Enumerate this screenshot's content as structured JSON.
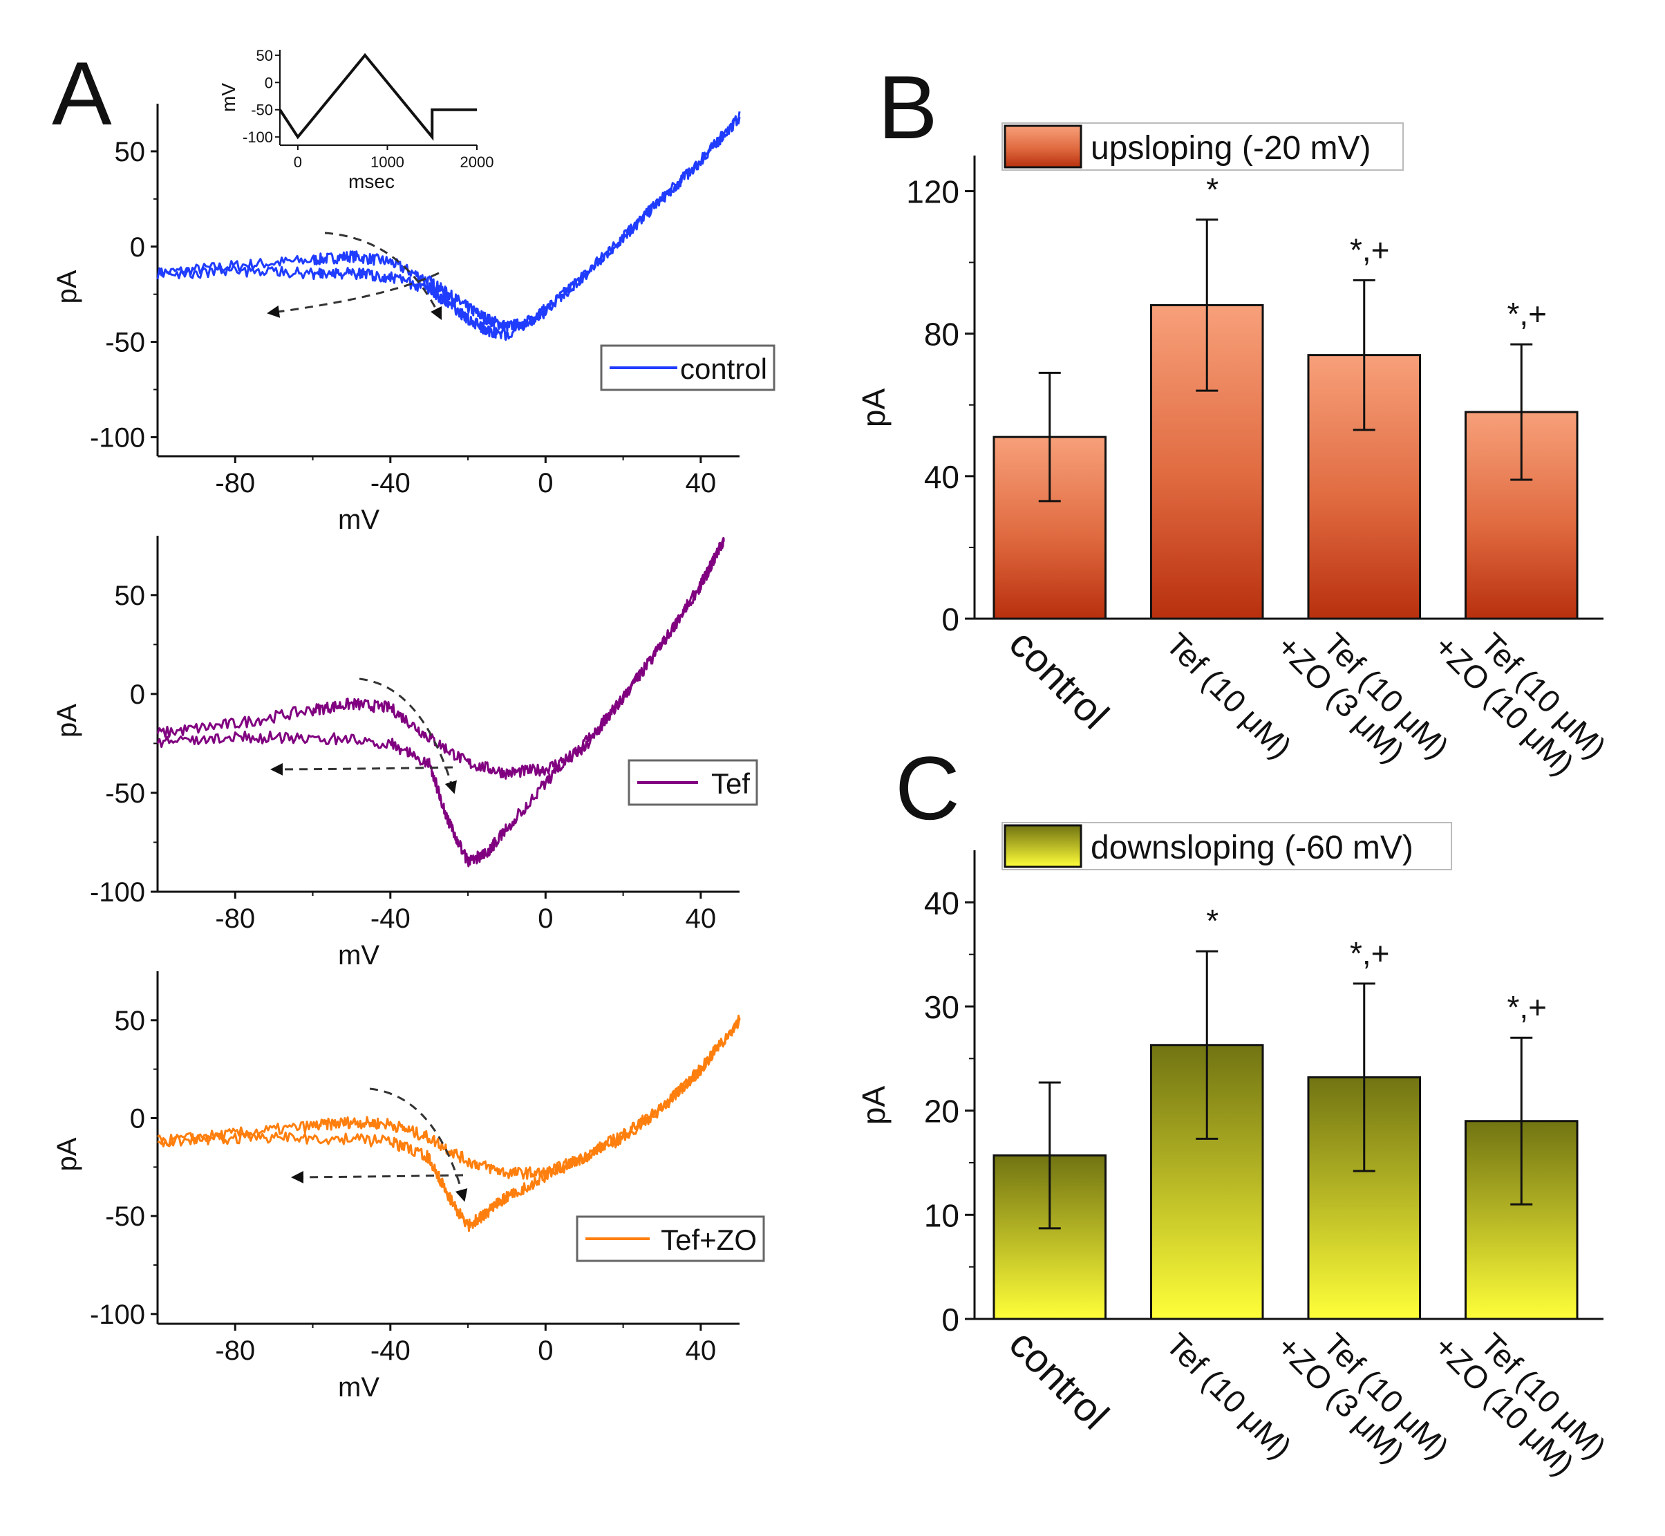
{
  "panel_labels": {
    "A": "A",
    "B": "B",
    "C": "C"
  },
  "inset": {
    "xlabel": "msec",
    "ylabel": "mV",
    "xticks": [
      "0",
      "1000",
      "2000"
    ],
    "yticks": [
      "50",
      "0",
      "-50",
      "-100"
    ],
    "xlim": [
      -200,
      2000
    ],
    "ylim": [
      -115,
      60
    ],
    "protocol": {
      "x": [
        -200,
        0,
        750,
        1500,
        1500,
        1700,
        2000
      ],
      "y": [
        -50,
        -100,
        50,
        -100,
        -50,
        -50,
        -50
      ]
    }
  },
  "chart_data": [
    {
      "id": "A1",
      "type": "line",
      "title": "",
      "xlabel": "mV",
      "ylabel": "pA",
      "xlim": [
        -100,
        50
      ],
      "ylim": [
        -110,
        75
      ],
      "xticks": [
        "-80",
        "-40",
        "0",
        "40"
      ],
      "yticks": [
        "50",
        "0",
        "-50",
        "-100"
      ],
      "legend": "control",
      "color": "#1f3cff",
      "series": [
        {
          "name": "upsloping",
          "x": [
            -100,
            -80,
            -60,
            -50,
            -40,
            -30,
            -25,
            -20,
            -15,
            -10,
            -5,
            0,
            10,
            20,
            30,
            40,
            50
          ],
          "y": [
            -14,
            -10,
            -7,
            -5,
            -8,
            -18,
            -25,
            -32,
            -38,
            -42,
            -40,
            -33,
            -15,
            5,
            25,
            45,
            68
          ]
        },
        {
          "name": "downsloping",
          "x": [
            50,
            40,
            30,
            20,
            10,
            0,
            -10,
            -15,
            -20,
            -25,
            -30,
            -40,
            -50,
            -60,
            -80,
            -100
          ],
          "y": [
            68,
            45,
            25,
            5,
            -15,
            -34,
            -46,
            -44,
            -38,
            -30,
            -22,
            -16,
            -14,
            -14,
            -13,
            -14
          ]
        }
      ]
    },
    {
      "id": "A2",
      "type": "line",
      "title": "",
      "xlabel": "mV",
      "ylabel": "pA",
      "xlim": [
        -100,
        50
      ],
      "ylim": [
        -100,
        80
      ],
      "xticks": [
        "-80",
        "-40",
        "0",
        "40"
      ],
      "yticks": [
        "50",
        "0",
        "-50",
        "-100"
      ],
      "legend": "Tef",
      "color": "#800080",
      "series": [
        {
          "name": "upsloping",
          "x": [
            -100,
            -80,
            -60,
            -50,
            -40,
            -30,
            -20,
            -10,
            0,
            10,
            20,
            30,
            40,
            46
          ],
          "y": [
            -20,
            -15,
            -8,
            -5,
            -7,
            -22,
            -35,
            -40,
            -38,
            -28,
            -2,
            25,
            55,
            78
          ]
        },
        {
          "name": "downsloping",
          "x": [
            46,
            40,
            30,
            20,
            10,
            0,
            -10,
            -15,
            -20,
            -25,
            -30,
            -40,
            -60,
            -80,
            -100
          ],
          "y": [
            78,
            55,
            25,
            -2,
            -25,
            -45,
            -68,
            -80,
            -85,
            -65,
            -35,
            -25,
            -22,
            -22,
            -25
          ]
        }
      ]
    },
    {
      "id": "A3",
      "type": "line",
      "title": "",
      "xlabel": "mV",
      "ylabel": "pA",
      "xlim": [
        -100,
        50
      ],
      "ylim": [
        -105,
        75
      ],
      "xticks": [
        "-80",
        "-40",
        "0",
        "40"
      ],
      "yticks": [
        "50",
        "0",
        "-50",
        "-100"
      ],
      "legend": "Tef+ZO",
      "color": "#ff7f0e",
      "series": [
        {
          "name": "upsloping",
          "x": [
            -100,
            -80,
            -60,
            -50,
            -40,
            -30,
            -20,
            -10,
            0,
            10,
            20,
            30,
            40,
            50
          ],
          "y": [
            -12,
            -8,
            -4,
            -2,
            -3,
            -10,
            -22,
            -28,
            -28,
            -20,
            -8,
            5,
            25,
            50
          ]
        },
        {
          "name": "downsloping",
          "x": [
            50,
            40,
            30,
            20,
            10,
            0,
            -10,
            -15,
            -20,
            -25,
            -30,
            -40,
            -60,
            -80,
            -100
          ],
          "y": [
            50,
            25,
            5,
            -10,
            -20,
            -30,
            -40,
            -48,
            -55,
            -40,
            -20,
            -12,
            -10,
            -10,
            -12
          ]
        }
      ]
    },
    {
      "id": "B",
      "type": "bar",
      "title": "",
      "legend": "upsloping (-20 mV)",
      "xlabel": "",
      "ylabel": "pA",
      "ylim": [
        0,
        130
      ],
      "yticks": [
        "0",
        "40",
        "80",
        "120"
      ],
      "categories": [
        "control",
        "Tef (10 μM)",
        "Tef (10 μM)",
        "Tef (10 μM)"
      ],
      "categories_line2": [
        "",
        "",
        "+ZO (3 μM)",
        "+ZO (10 μM)"
      ],
      "values": [
        51,
        88,
        74,
        58
      ],
      "errors": [
        18,
        24,
        21,
        19
      ],
      "significance": [
        "",
        "*",
        "*,+",
        "*,+"
      ]
    },
    {
      "id": "C",
      "type": "bar",
      "title": "",
      "legend": "downsloping (-60 mV)",
      "xlabel": "",
      "ylabel": "pA",
      "ylim": [
        0,
        45
      ],
      "yticks": [
        "0",
        "10",
        "20",
        "30",
        "40"
      ],
      "categories": [
        "control",
        "Tef (10 μM)",
        "Tef (10 μM)",
        "Tef (10 μM)"
      ],
      "categories_line2": [
        "",
        "",
        "+ZO (3 μM)",
        "+ZO (10 μM)"
      ],
      "values": [
        15.7,
        26.3,
        23.2,
        19
      ],
      "errors": [
        7,
        9,
        9,
        8
      ],
      "significance": [
        "",
        "*",
        "*,+",
        "*,+"
      ]
    }
  ]
}
